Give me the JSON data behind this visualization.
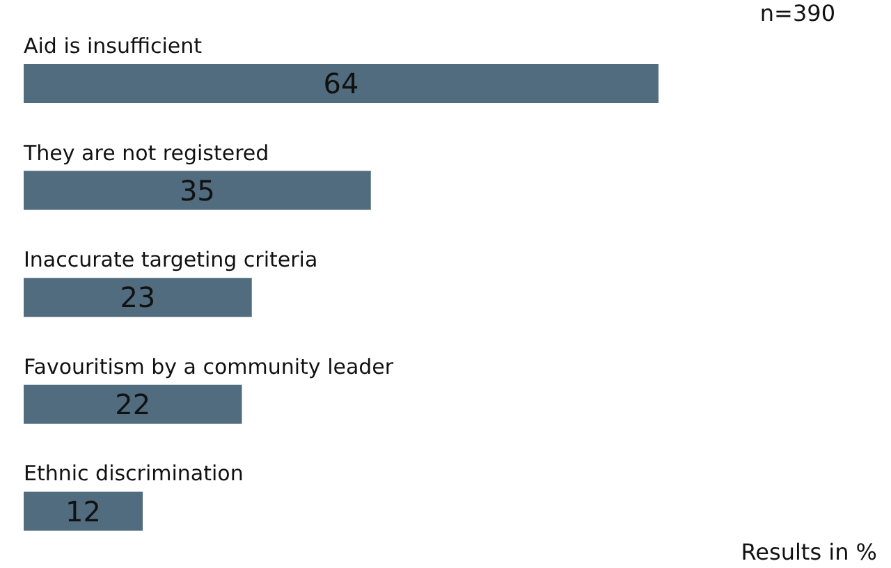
{
  "chart_data": {
    "type": "bar",
    "orientation": "horizontal",
    "categories": [
      "Aid is insufficient",
      "They are not registered",
      "Inaccurate targeting criteria",
      "Favouritism by a community leader",
      "Ethnic discrimination"
    ],
    "values": [
      64,
      35,
      23,
      22,
      12
    ],
    "color": "#516c7e",
    "data_labels": true,
    "annotations": [
      "n=390",
      "Results in %"
    ]
  }
}
